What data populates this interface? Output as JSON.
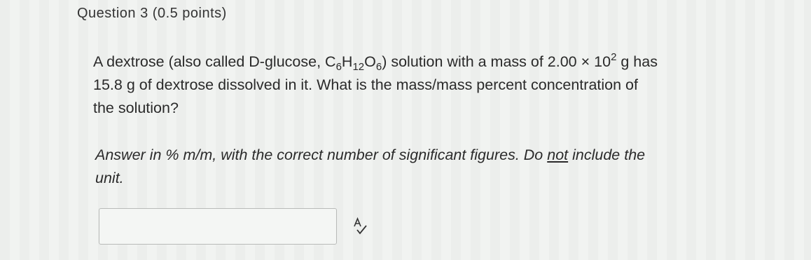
{
  "header": {
    "title": "Question 3 (0.5 points)"
  },
  "question": {
    "parts": [
      "A dextrose (also called D-glucose, C",
      "6",
      "H",
      "12",
      "O",
      "6",
      ") solution with a mass of 2.00 × 10",
      "2",
      " g has",
      "15.8 g of dextrose dissolved in it. What is the mass/mass percent concentration of",
      "the solution?"
    ]
  },
  "instruction": {
    "parts": [
      "Answer in % m/m, with the correct number of significant figures. Do ",
      "not",
      " include the",
      "unit."
    ]
  }
}
